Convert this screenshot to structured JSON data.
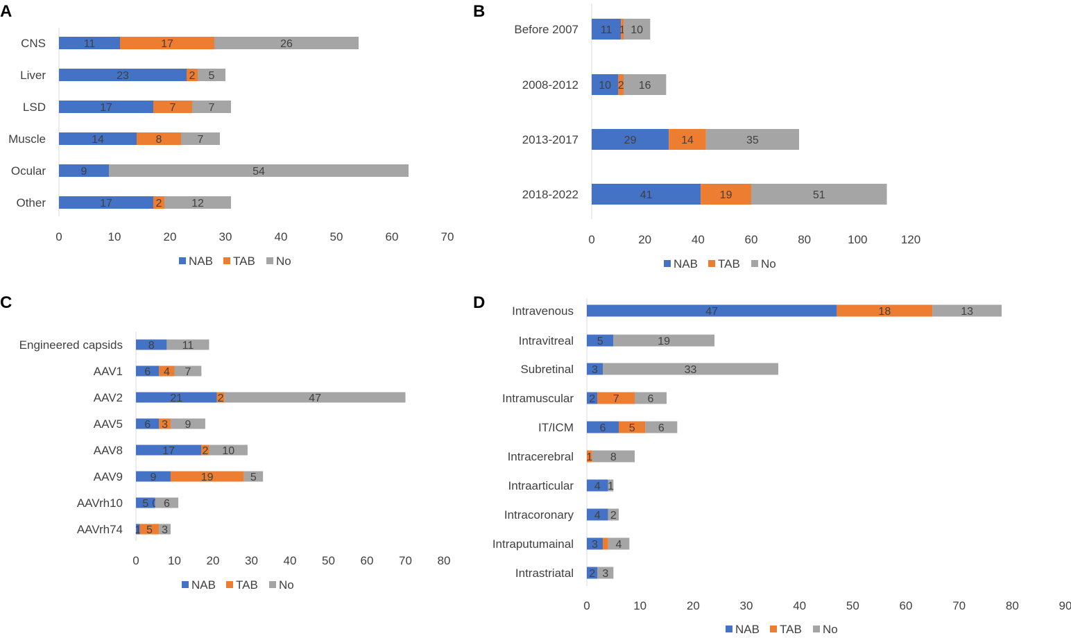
{
  "legend": {
    "nab": "NAB",
    "tab": "TAB",
    "no": "No"
  },
  "colors": {
    "nab": "#4472C4",
    "tab": "#ED7D31",
    "no": "#A5A5A5",
    "axis": "#D9D9D9"
  },
  "chart_data": [
    {
      "panel": "A",
      "type": "bar",
      "orientation": "horizontal",
      "stacked": true,
      "categories": [
        "CNS",
        "Liver",
        "LSD",
        "Muscle",
        "Ocular",
        "Other"
      ],
      "series": [
        {
          "name": "NAB",
          "values": [
            11,
            23,
            17,
            14,
            9,
            17
          ]
        },
        {
          "name": "TAB",
          "values": [
            17,
            2,
            7,
            8,
            0,
            2
          ]
        },
        {
          "name": "No",
          "values": [
            26,
            5,
            7,
            7,
            54,
            12
          ]
        }
      ],
      "xlim": [
        0,
        70
      ],
      "xticks": [
        0,
        10,
        20,
        30,
        40,
        50,
        60,
        70
      ],
      "legend_position": "bottom"
    },
    {
      "panel": "B",
      "type": "bar",
      "orientation": "horizontal",
      "stacked": true,
      "categories": [
        "Before 2007",
        "2008-2012",
        "2013-2017",
        "2018-2022"
      ],
      "series": [
        {
          "name": "NAB",
          "values": [
            11,
            10,
            29,
            41
          ]
        },
        {
          "name": "TAB",
          "values": [
            1,
            2,
            14,
            19
          ]
        },
        {
          "name": "No",
          "values": [
            10,
            16,
            35,
            51
          ]
        }
      ],
      "xlim": [
        0,
        120
      ],
      "xticks": [
        0,
        20,
        40,
        60,
        80,
        100,
        120
      ],
      "legend_position": "bottom"
    },
    {
      "panel": "C",
      "type": "bar",
      "orientation": "horizontal",
      "stacked": true,
      "categories": [
        "Engineered capsids",
        "AAV1",
        "AAV2",
        "AAV5",
        "AAV8",
        "AAV9",
        "AAVrh10",
        "AAVrh74"
      ],
      "series": [
        {
          "name": "NAB",
          "values": [
            8,
            6,
            21,
            6,
            17,
            9,
            5,
            1
          ]
        },
        {
          "name": "TAB",
          "values": [
            0,
            4,
            2,
            3,
            2,
            19,
            0,
            5
          ]
        },
        {
          "name": "No",
          "values": [
            11,
            7,
            47,
            9,
            10,
            5,
            6,
            3
          ]
        }
      ],
      "label_overrides": {
        "6": {
          "TAB": "0"
        }
      },
      "xlim": [
        0,
        80
      ],
      "xticks": [
        0,
        10,
        20,
        30,
        40,
        50,
        60,
        70,
        80
      ],
      "legend_position": "bottom"
    },
    {
      "panel": "D",
      "type": "bar",
      "orientation": "horizontal",
      "stacked": true,
      "categories": [
        "Intravenous",
        "Intravitreal",
        "Subretinal",
        "Intramuscular",
        "IT/ICM",
        "Intracerebral",
        "Intraarticular",
        "Intracoronary",
        "Intraputumainal",
        "Intrastriatal"
      ],
      "series": [
        {
          "name": "NAB",
          "values": [
            47,
            5,
            3,
            2,
            6,
            0,
            4,
            4,
            3,
            2
          ]
        },
        {
          "name": "TAB",
          "values": [
            18,
            0,
            0,
            7,
            5,
            1,
            0,
            0,
            1,
            0
          ]
        },
        {
          "name": "No",
          "values": [
            13,
            19,
            33,
            6,
            6,
            8,
            1,
            2,
            4,
            3
          ]
        }
      ],
      "label_overrides": {
        "8": {
          "TAB": ""
        }
      },
      "xlim": [
        0,
        90
      ],
      "xticks": [
        0,
        10,
        20,
        30,
        40,
        50,
        60,
        70,
        80,
        90
      ],
      "legend_position": "bottom"
    }
  ]
}
